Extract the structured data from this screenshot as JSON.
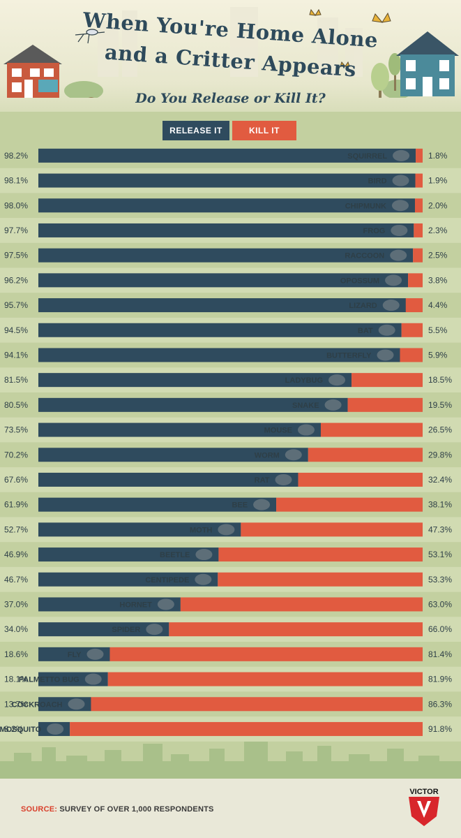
{
  "title_line1": "When You're Home Alone",
  "title_line2": "and a Critter Appears",
  "subtitle": "Do You Release or Kill It?",
  "legend": {
    "release": "RELEASE IT",
    "kill": "KILL IT"
  },
  "colors": {
    "release": "#2f4b5e",
    "kill": "#e15b40",
    "panel": "#c3d0a0",
    "band": "#d1dbb2",
    "text": "#2e3f47",
    "title": "#2e4a5b"
  },
  "source": {
    "label": "SOURCE:",
    "text": "SURVEY OF OVER 1,000 RESPONDENTS"
  },
  "brand": "VICTOR",
  "chart_data": {
    "type": "bar",
    "orientation": "horizontal-diverging",
    "title": "When You're Home Alone and a Critter Appears",
    "subtitle": "Do You Release or Kill It?",
    "unit": "%",
    "categories": [
      "SQUIRREL",
      "BIRD",
      "CHIPMUNK",
      "FROG",
      "RACCOON",
      "OPOSSUM",
      "LIZARD",
      "BAT",
      "BUTTERFLY",
      "LADYBUG",
      "SNAKE",
      "MOUSE",
      "WORM",
      "RAT",
      "BEE",
      "MOTH",
      "BEETLE",
      "CENTIPEDE",
      "HORNET",
      "SPIDER",
      "FLY",
      "PALMETTO BUG",
      "COCKROACH",
      "MOSQUITO"
    ],
    "icons": [
      "squirrel-icon",
      "bird-icon",
      "chipmunk-icon",
      "frog-icon",
      "raccoon-icon",
      "opossum-icon",
      "lizard-icon",
      "bat-icon",
      "butterfly-icon",
      "ladybug-icon",
      "snake-icon",
      "mouse-icon",
      "worm-icon",
      "rat-icon",
      "bee-icon",
      "moth-icon",
      "beetle-icon",
      "centipede-icon",
      "hornet-icon",
      "spider-icon",
      "fly-icon",
      "palmetto-bug-icon",
      "cockroach-icon",
      "mosquito-icon"
    ],
    "series": [
      {
        "name": "RELEASE IT",
        "values": [
          98.2,
          98.1,
          98.0,
          97.7,
          97.5,
          96.2,
          95.7,
          94.5,
          94.1,
          81.5,
          80.5,
          73.5,
          70.2,
          67.6,
          61.9,
          52.7,
          46.9,
          46.7,
          37.0,
          34.0,
          18.6,
          18.1,
          13.7,
          8.2
        ]
      },
      {
        "name": "KILL IT",
        "values": [
          1.8,
          1.9,
          2.0,
          2.3,
          2.5,
          3.8,
          4.4,
          5.5,
          5.9,
          18.5,
          19.5,
          26.5,
          29.8,
          32.4,
          38.1,
          47.3,
          53.1,
          53.3,
          63.0,
          66.0,
          81.4,
          81.9,
          86.3,
          91.8
        ]
      }
    ],
    "labels_release": [
      "98.2%",
      "98.1%",
      "98.0%",
      "97.7%",
      "97.5%",
      "96.2%",
      "95.7%",
      "94.5%",
      "94.1%",
      "81.5%",
      "80.5%",
      "73.5%",
      "70.2%",
      "67.6%",
      "61.9%",
      "52.7%",
      "46.9%",
      "46.7%",
      "37.0%",
      "34.0%",
      "18.6%",
      "18.1%",
      "13.7%",
      "8.2%"
    ],
    "labels_kill": [
      "1.8%",
      "1.9%",
      "2.0%",
      "2.3%",
      "2.5%",
      "3.8%",
      "4.4%",
      "5.5%",
      "5.9%",
      "18.5%",
      "19.5%",
      "26.5%",
      "29.8%",
      "32.4%",
      "38.1%",
      "47.3%",
      "53.1%",
      "53.3%",
      "63.0%",
      "66.0%",
      "81.4%",
      "81.9%",
      "86.3%",
      "91.8%"
    ],
    "legend_position": "top-center",
    "grid": false
  }
}
